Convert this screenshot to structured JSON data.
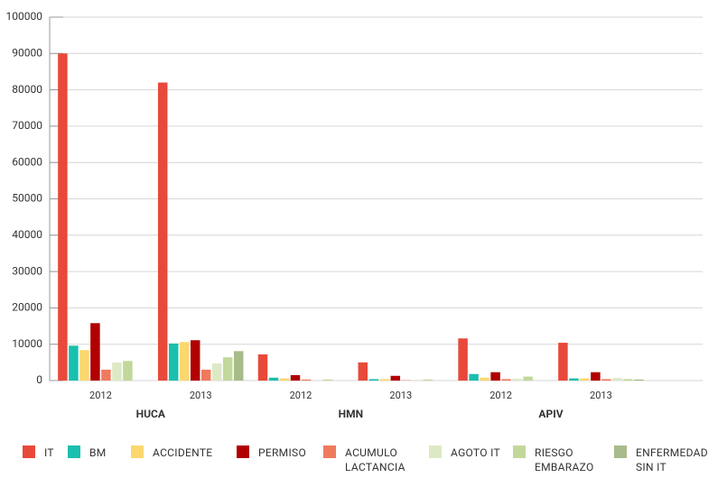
{
  "chart_data": {
    "type": "bar",
    "categories": [
      "2012",
      "2013",
      "2012",
      "2013",
      "2012",
      "2013"
    ],
    "groups": [
      "HUCA",
      "HMN",
      "APIV"
    ],
    "ylim": [
      0,
      100000
    ],
    "yticks": [
      0,
      10000,
      20000,
      30000,
      40000,
      50000,
      60000,
      70000,
      80000,
      90000,
      100000
    ],
    "grid": true,
    "legend": "bottom",
    "series": [
      {
        "name": "IT",
        "color": "#e8493a",
        "values": [
          90000,
          82000,
          7200,
          5000,
          11600,
          10400
        ]
      },
      {
        "name": "BM",
        "color": "#1bbfad",
        "values": [
          9600,
          10200,
          800,
          400,
          1800,
          600
        ]
      },
      {
        "name": "ACCIDENTE",
        "color": "#fcd76f",
        "values": [
          8400,
          10600,
          600,
          400,
          800,
          600
        ]
      },
      {
        "name": "PERMISO",
        "color": "#b00000",
        "values": [
          15800,
          11100,
          1500,
          1300,
          2300,
          2300
        ]
      },
      {
        "name": "ACUMULO LACTANCIA",
        "color": "#ef7a5e",
        "values": [
          3000,
          3000,
          300,
          100,
          400,
          400
        ]
      },
      {
        "name": "AGOTO IT",
        "color": "#dde9c4",
        "values": [
          5000,
          4700,
          0,
          200,
          500,
          700
        ]
      },
      {
        "name": "RIESGO EMBARAZO",
        "color": "#c2d89a",
        "values": [
          5400,
          6400,
          300,
          300,
          1100,
          400
        ]
      },
      {
        "name": "ENFERMEDAD SIN IT",
        "color": "#a8bb8a",
        "values": [
          0,
          8100,
          0,
          0,
          0,
          300
        ]
      }
    ]
  }
}
